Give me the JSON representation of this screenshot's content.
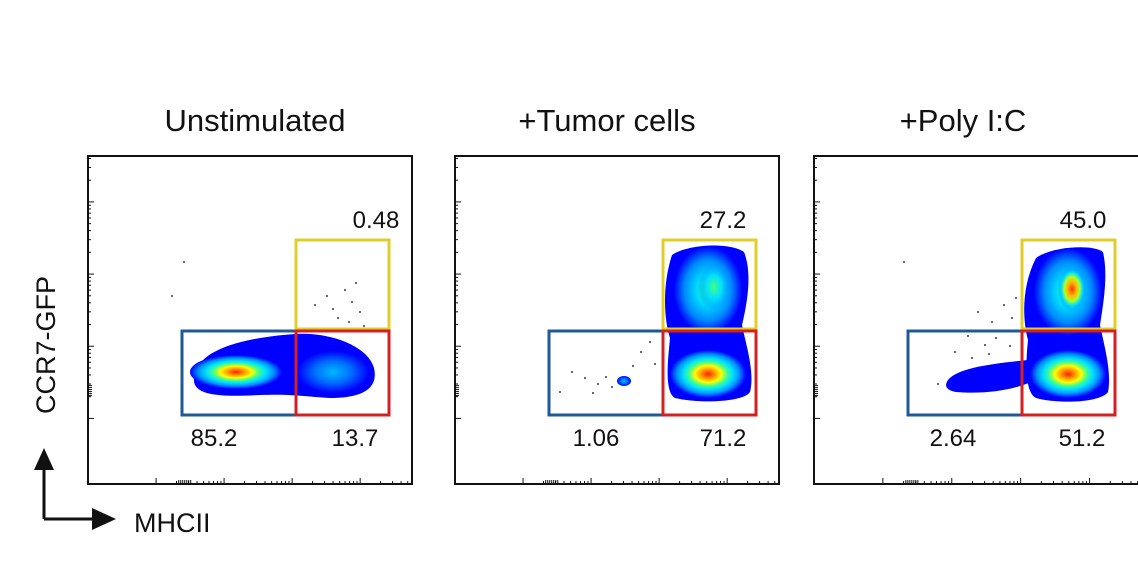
{
  "axes": {
    "xlabel": "MHCII",
    "ylabel": "CCR7-GFP"
  },
  "colors": {
    "gate_double_positive": "#e0cc2a",
    "gate_mhcii_neg": "#1f5a96",
    "gate_mhcii_pos": "#d42020",
    "density_scale": [
      "#0000ff",
      "#0090ff",
      "#00e0ff",
      "#40ff90",
      "#c0ff00",
      "#ffff00",
      "#ffa000",
      "#ff2000"
    ]
  },
  "chart_data": [
    {
      "type": "scatter",
      "subtype": "flow-cytometry-density",
      "title": "Unstimulated",
      "xlabel": "MHCII",
      "ylabel": "CCR7-GFP",
      "gates": [
        {
          "name": "CCR7+ MHCII+",
          "color": "yellow",
          "percent": "0.48"
        },
        {
          "name": "CCR7- MHCII-",
          "color": "blue",
          "percent": "85.2"
        },
        {
          "name": "CCR7- MHCII+",
          "color": "red",
          "percent": "13.7"
        }
      ]
    },
    {
      "type": "scatter",
      "subtype": "flow-cytometry-density",
      "title": "+Tumor cells",
      "xlabel": "MHCII",
      "ylabel": "CCR7-GFP",
      "gates": [
        {
          "name": "CCR7+ MHCII+",
          "color": "yellow",
          "percent": "27.2"
        },
        {
          "name": "CCR7- MHCII-",
          "color": "blue",
          "percent": "1.06"
        },
        {
          "name": "CCR7- MHCII+",
          "color": "red",
          "percent": "71.2"
        }
      ]
    },
    {
      "type": "scatter",
      "subtype": "flow-cytometry-density",
      "title": "+Poly I:C",
      "xlabel": "MHCII",
      "ylabel": "CCR7-GFP",
      "gates": [
        {
          "name": "CCR7+ MHCII+",
          "color": "yellow",
          "percent": "45.0"
        },
        {
          "name": "CCR7- MHCII-",
          "color": "blue",
          "percent": "2.64"
        },
        {
          "name": "CCR7- MHCII+",
          "color": "red",
          "percent": "51.2"
        }
      ]
    }
  ]
}
